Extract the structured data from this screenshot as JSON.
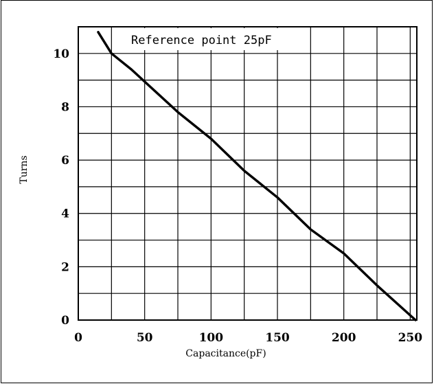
{
  "chart_data": {
    "type": "line",
    "title": "",
    "xlabel": "Capacitance(pF)",
    "ylabel": "Turns",
    "xlim": [
      0,
      255
    ],
    "ylim": [
      0,
      11
    ],
    "x_ticks": [
      0,
      50,
      100,
      150,
      200,
      250
    ],
    "x_tick_labels": [
      "0",
      "50",
      "100",
      "150",
      "200",
      "250"
    ],
    "x_minor_gridlines": [
      25,
      75,
      125,
      175,
      225
    ],
    "y_ticks": [
      0,
      2,
      4,
      6,
      8,
      10
    ],
    "y_tick_labels": [
      "0",
      "2",
      "4",
      "6",
      "8",
      "10"
    ],
    "y_minor_gridlines": [
      1,
      3,
      5,
      7,
      9
    ],
    "grid": true,
    "annotation": "Reference point 25pF",
    "line_color": "#000000",
    "series": [
      {
        "x": [
          15,
          20,
          25,
          40,
          75,
          100,
          125,
          150,
          175,
          200,
          225,
          254
        ],
        "y": [
          10.8,
          10.4,
          10.0,
          9.4,
          7.8,
          6.8,
          5.6,
          4.6,
          3.4,
          2.5,
          1.3,
          0.0
        ]
      }
    ]
  }
}
